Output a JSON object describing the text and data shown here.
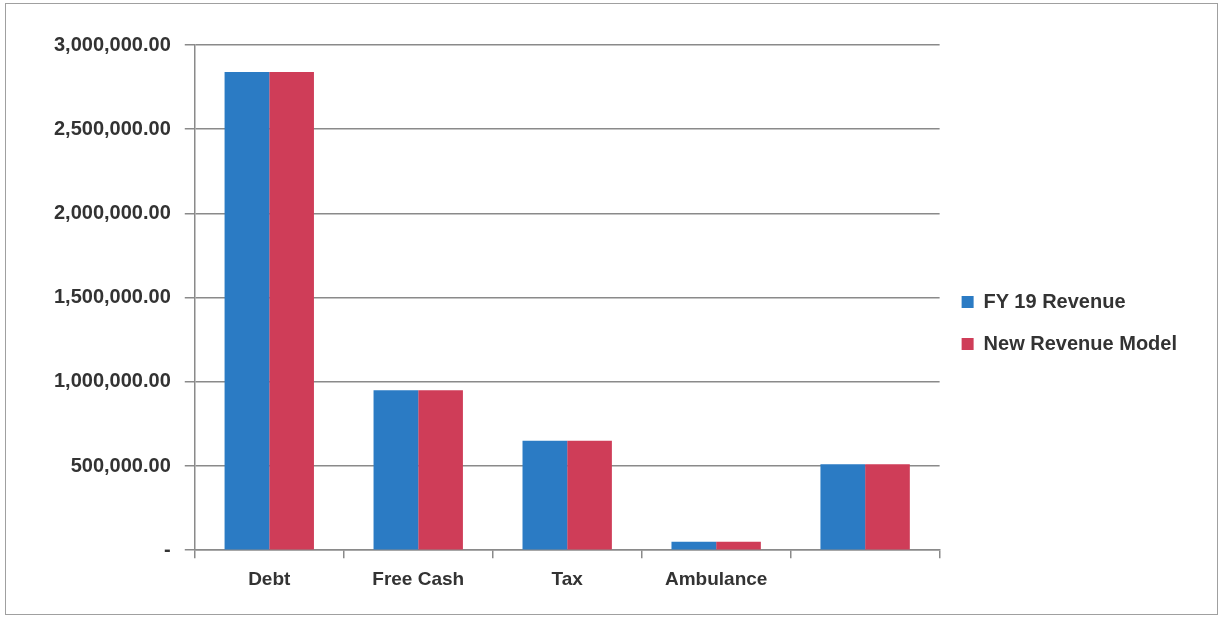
{
  "chart_data": {
    "type": "bar",
    "categories": [
      "Debt",
      "Free Cash",
      "Tax",
      "Ambulance",
      null
    ],
    "series": [
      {
        "name": "FY 19 Revenue",
        "color": "#2b7bc4",
        "values": [
          2840000,
          950000,
          650000,
          50000,
          510000
        ]
      },
      {
        "name": "New Revenue Model",
        "color": "#cf3d58",
        "values": [
          2840000,
          950000,
          650000,
          50000,
          510000
        ]
      }
    ],
    "ylim": [
      0,
      3000000
    ],
    "yticks": [
      {
        "value": 0,
        "label": "-"
      },
      {
        "value": 500000,
        "label": "500,000.00"
      },
      {
        "value": 1000000,
        "label": "1,000,000.00"
      },
      {
        "value": 1500000,
        "label": "1,500,000.00"
      },
      {
        "value": 2000000,
        "label": "2,000,000.00"
      },
      {
        "value": 2500000,
        "label": "2,500,000.00"
      },
      {
        "value": 3000000,
        "label": "3,000,000.00"
      }
    ],
    "grid": "y",
    "legend": "right"
  }
}
